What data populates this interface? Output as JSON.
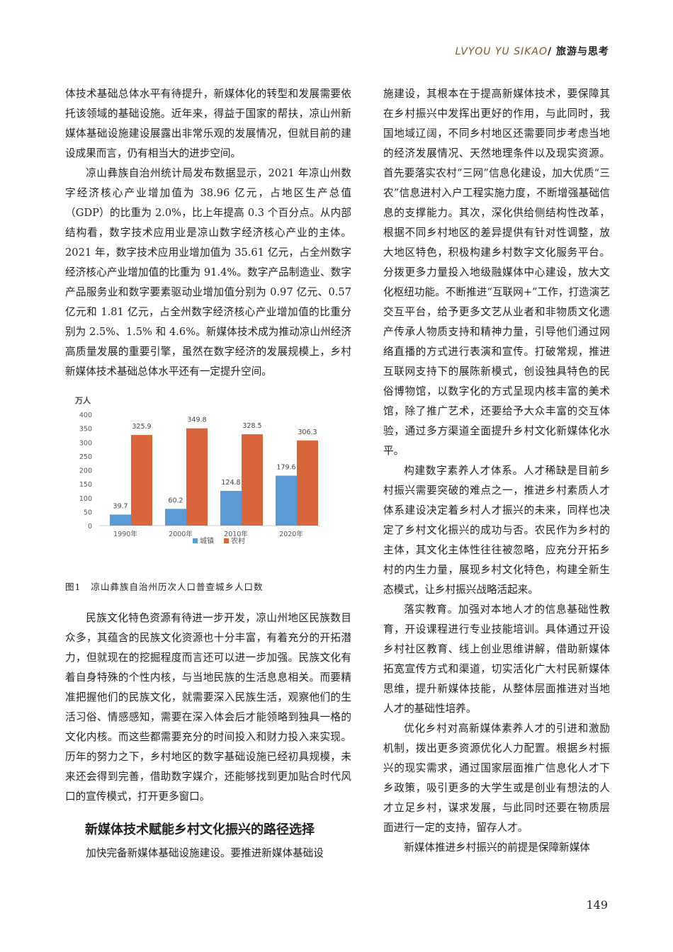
{
  "header": {
    "journal_en": "LVYOU YU SIKAO",
    "separator": "/",
    "journal_cn": " 旅游与思考"
  },
  "left_paragraphs_top": [
    {
      "indent": false,
      "text": "体技术基础总体水平有待提升，新媒体化的转型和发展需要依托该领域的基础设施。近年来，得益于国家的帮扶，凉山州新媒体基础设施建设展露出非常乐观的发展情况，但就目前的建设成果而言，仍有相当大的进步空间。"
    },
    {
      "indent": true,
      "text": "凉山彝族自治州统计局发布数据显示，2021 年凉山州数字经济核心产业增加值为 38.96 亿元，占地区生产总值（GDP）的比重为 2.0%，比上年提高 0.3 个百分点。从内部结构看，数字技术应用业是凉山数字经济核心产业的主体。2021 年，数字技术应用业增加值为 35.61 亿元，占全州数字经济核心产业增加值的比重为 91.4%。数字产品制造业、数字产品服务业和数字要素驱动业增加值分别为 0.97 亿元、0.57 亿元和 1.81 亿元，占全州数字经济核心产业增加值的比重分别为 2.5%、1.5% 和 4.6%。新媒体技术成为推动凉山州经济高质量发展的重要引擎，虽然在数字经济的发展规模上，乡村新媒体技术基础总体水平还有一定提升空间。"
    }
  ],
  "figure": {
    "number": "图1",
    "caption": "凉山彝族自治州历次人口普查城乡人口数"
  },
  "chart_data": {
    "type": "bar",
    "ylabel": "万人",
    "ylim": [
      0,
      400
    ],
    "yticks": [
      0,
      50,
      100,
      150,
      200,
      250,
      300,
      350,
      400
    ],
    "categories": [
      "1990年",
      "2000年",
      "2010年",
      "2020年"
    ],
    "series": [
      {
        "name": "城镇",
        "color": "#5b9bd5",
        "values": [
          39.7,
          60.2,
          124.8,
          179.6
        ]
      },
      {
        "name": "农村",
        "color": "#d9663a",
        "values": [
          325.9,
          349.8,
          328.5,
          306.3
        ]
      }
    ],
    "legend": "bottom",
    "grid": false
  },
  "left_paragraphs_bottom": [
    {
      "indent": true,
      "text": "民族文化特色资源有待进一步开发，凉山州地区民族数目众多，其蕴含的民族文化资源也十分丰富，有着充分的开拓潜力，但就现在的挖掘程度而言还可以进一步加强。民族文化有着自身特殊的个性内核，与当地民族的生活息息相关。而要精准把握他们的民族文化，就需要深入民族生活，观察他们的生活习俗、情感感知，需要在深入体会后才能领略到独具一格的文化内核。而这些都需要充分的时间投入和财力投入来实现。历年的努力之下，乡村地区的数字基础设施已经初具规模，未来还会得到完善，借助数字媒介，还能够找到更加贴合时代风口的宣传模式，打开更多窗口。"
    }
  ],
  "section_heading": "新媒体技术赋能乡村文化振兴的路径选择",
  "left_paragraphs_end": [
    {
      "indent": true,
      "text": "加快完备新媒体基础设施建设。要推进新媒体基础设"
    }
  ],
  "right_paragraphs": [
    {
      "indent": false,
      "text": "施建设，其根本在于提高新媒体技术，要保障其在乡村振兴中发挥出更好的作用，与此同时，我国地域辽阔，不同乡村地区还需要同步考虑当地的经济发展情况、天然地理条件以及现实资源。首先要落实农村“三网”信息化建设，加大优质“三农”信息进村入户工程实施力度，不断增强基础信息的支撑能力。其次，深化供给侧结构性改革，根据不同乡村地区的差异提供有针对性调整，放大地区特色，积极构建乡村数字文化服务平台。分拨更多力量投入地级融媒体中心建设，放大文化枢纽功能。不断推进“互联网+”工作，打造演艺交互平台，给予更多文艺从业者和非物质文化遗产传承人物质支持和精神力量，引导他们通过网络直播的方式进行表演和宣传。打破常规，推进互联网支持下的展陈新模式，创设独具特色的民俗博物馆，以数字化的方式呈现内核丰富的美术馆，除了推广艺术，还要给予大众丰富的交互体验，通过多方渠道全面提升乡村文化新媒体化水平。"
    },
    {
      "indent": true,
      "text": "构建数字素养人才体系。人才稀缺是目前乡村振兴需要突破的难点之一，推进乡村素质人才体系建设决定着乡村人才振兴的未来，同样也决定了乡村文化振兴的成功与否。农民作为乡村的主体，其文化主体性往往被忽略，应充分开拓乡村的内生力量，展现乡村文化特色，构建全新生态模式，让乡村振兴战略活起来。"
    },
    {
      "indent": true,
      "text": "落实教育。加强对本地人才的信息基础性教育，开设课程进行专业技能培训。具体通过开设乡村社区教育、线上创业思维讲解，借助新媒体拓宽宣传方式和渠道，切实活化广大村民新媒体思维，提升新媒体技能，从整体层面推进对当地人才的基础性培养。"
    },
    {
      "indent": true,
      "text": "优化乡村对高新媒体素养人才的引进和激励机制，拨出更多资源优化人力配置。根据乡村振兴的现实需求，通过国家层面推广信息化人才下乡政策，吸引更多的大学生或是创业有想法的人才立足乡村，谋求发展，与此同时还要在物质层面进行一定的支持，留存人才。"
    },
    {
      "indent": true,
      "text": "新媒体推进乡村振兴的前提是保障新媒体"
    }
  ],
  "page_number": "149"
}
